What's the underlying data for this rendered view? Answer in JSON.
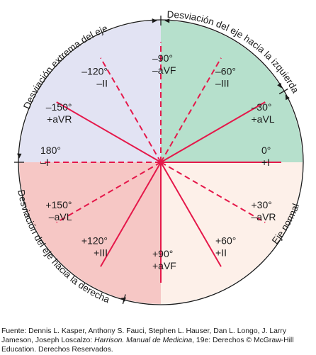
{
  "diagram": {
    "quadrant_colors": {
      "extreme": "#e2e3f3",
      "left": "#b6e0cc",
      "right": "#f6c7c5",
      "normal": "#fdf0e9"
    },
    "line_color": "#e5184a",
    "axes": [
      {
        "angle": 0,
        "deg": "0°",
        "lead": "+I",
        "style": "solid"
      },
      {
        "angle": 30,
        "deg": "+30°",
        "lead": "–aVR",
        "style": "dashed"
      },
      {
        "angle": 60,
        "deg": "+60°",
        "lead": "+II",
        "style": "solid"
      },
      {
        "angle": 90,
        "deg": "+90°",
        "lead": "+aVF",
        "style": "solid"
      },
      {
        "angle": 120,
        "deg": "+120°",
        "lead": "+III",
        "style": "solid"
      },
      {
        "angle": 150,
        "deg": "+150°",
        "lead": "–aVL",
        "style": "dashed"
      },
      {
        "angle": 180,
        "deg": "180°",
        "lead": "–I",
        "style": "dashed"
      },
      {
        "angle": -150,
        "deg": "–150°",
        "lead": "+aVR",
        "style": "solid"
      },
      {
        "angle": -120,
        "deg": "–120°",
        "lead": "–II",
        "style": "dashed"
      },
      {
        "angle": -90,
        "deg": "–90°",
        "lead": "–aVF",
        "style": "dashed"
      },
      {
        "angle": -60,
        "deg": "–60°",
        "lead": "–III",
        "style": "dashed"
      },
      {
        "angle": -30,
        "deg": "–30°",
        "lead": "+aVL",
        "style": "solid"
      }
    ],
    "arc_labels": {
      "extreme": "Desviación extrema del eje",
      "left": "Desviación del eje hacia la izquierda",
      "right": "Desviación del eje hacia la derecha",
      "normal": "Eje normal"
    }
  },
  "credit": {
    "prefix": "Fuente: Dennis L. Kasper, Anthony S. Fauci, Stephen L. Hauser, Dan L. Longo, J. Larry Jameson, Joseph Loscalzo: ",
    "book": "Harrison. Manual de Medicina",
    "suffix": ", 19e: Derechos © McGraw-Hill Education. Derechos Reservados."
  }
}
